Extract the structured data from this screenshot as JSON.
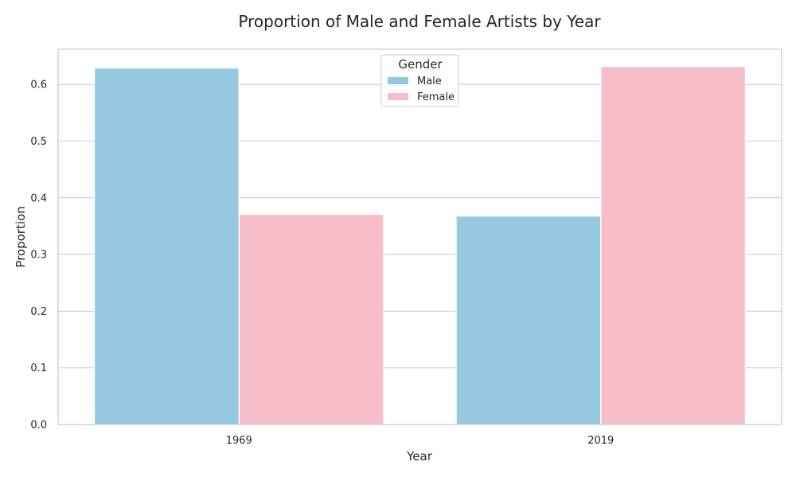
{
  "chart_data": {
    "type": "bar",
    "title": "Proportion of Male and Female Artists by Year",
    "xlabel": "Year",
    "ylabel": "Proportion",
    "categories": [
      "1969",
      "2019"
    ],
    "series": [
      {
        "name": "Male",
        "values": [
          0.629,
          0.368
        ],
        "color": "#95c9df"
      },
      {
        "name": "Female",
        "values": [
          0.371,
          0.632
        ],
        "color": "#f6bec9"
      }
    ],
    "ylim": [
      0,
      0.662
    ],
    "yticks": [
      0.0,
      0.1,
      0.2,
      0.3,
      0.4,
      0.5,
      0.6
    ],
    "ytick_labels": [
      "0.0",
      "0.1",
      "0.2",
      "0.3",
      "0.4",
      "0.5",
      "0.6"
    ],
    "grid": true,
    "legend": {
      "title": "Gender",
      "position": "top-center"
    }
  }
}
